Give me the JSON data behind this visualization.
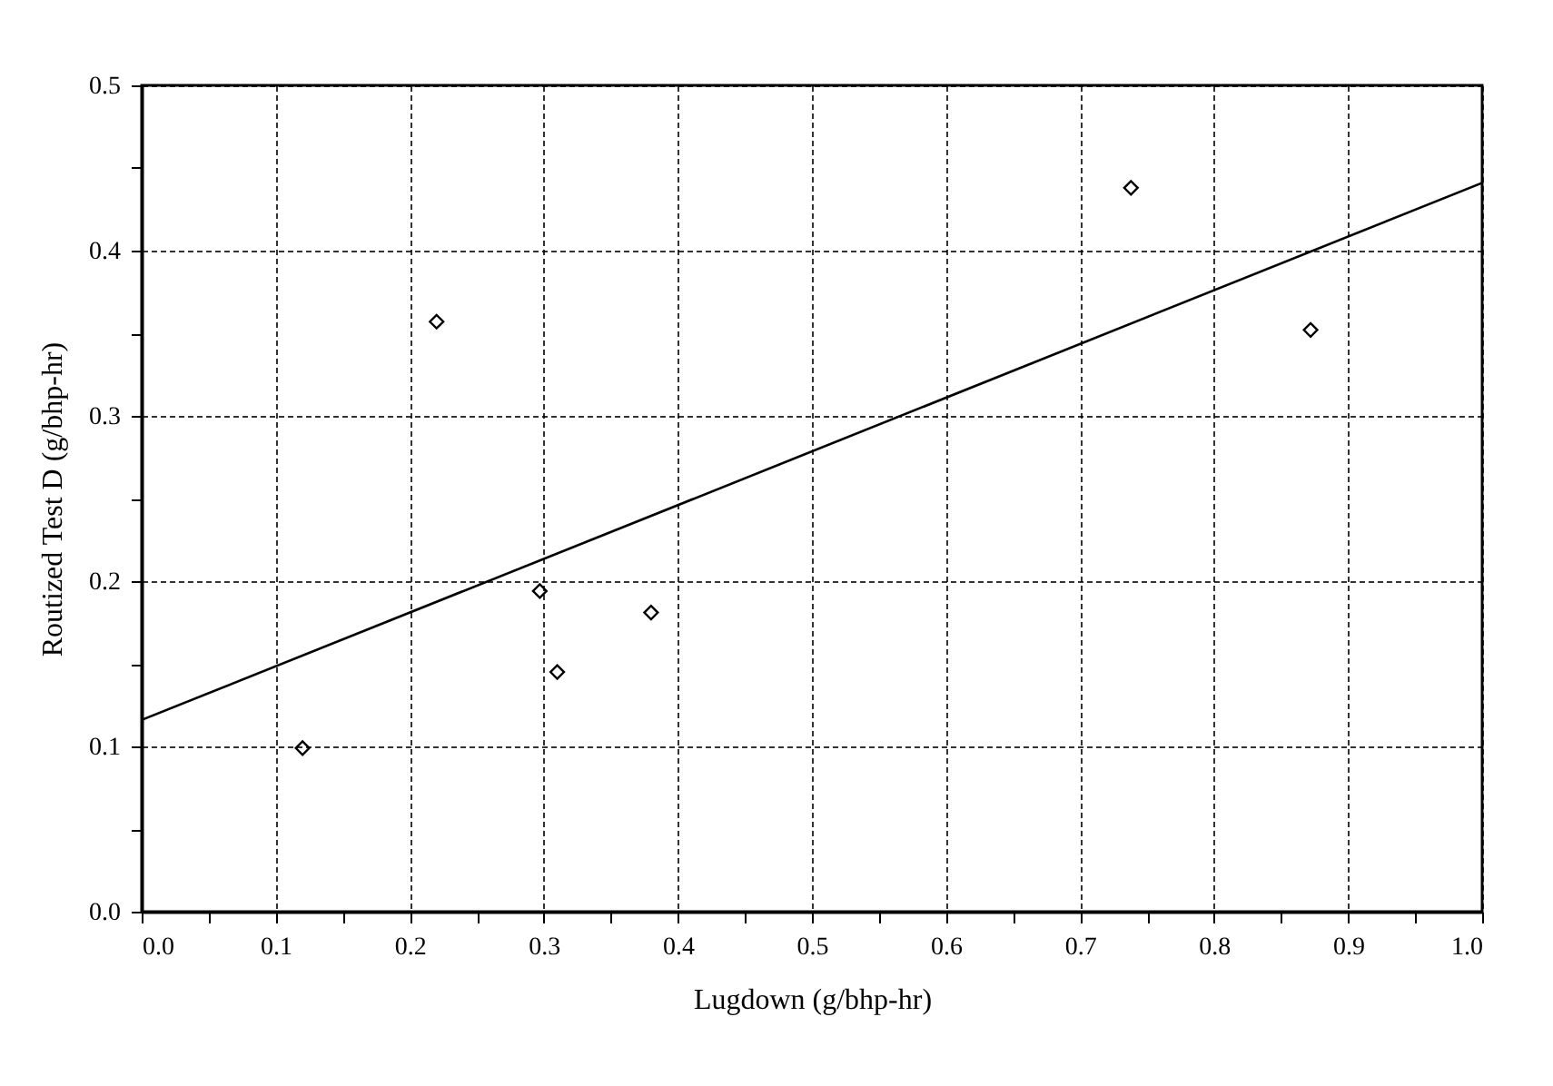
{
  "chart_data": {
    "type": "scatter",
    "xlabel": "Lugdown (g/bhp-hr)",
    "ylabel": "Routized Test D (g/bhp-hr)",
    "xlim": [
      0,
      1
    ],
    "ylim": [
      0,
      0.5
    ],
    "xticks": [
      {
        "value": 0,
        "label": "0.0"
      },
      {
        "value": 0.05,
        "label": null
      },
      0.1,
      {
        "value": 0.15,
        "label": null
      },
      0.2,
      {
        "value": 0.25,
        "label": null
      },
      0.3,
      {
        "value": 0.35,
        "label": null
      },
      0.4,
      {
        "value": 0.45,
        "label": null
      },
      0.5,
      {
        "value": 0.55,
        "label": null
      },
      0.6,
      {
        "value": 0.65,
        "label": null
      },
      0.7,
      {
        "value": 0.75,
        "label": null
      },
      0.8,
      {
        "value": 0.85,
        "label": null
      },
      0.9,
      {
        "value": 0.95,
        "label": null
      },
      {
        "value": 1,
        "label": "1.0"
      }
    ],
    "yticks": [
      {
        "value": 0,
        "label": "0.0"
      },
      {
        "value": 0.05,
        "label": null
      },
      0.1,
      {
        "value": 0.15,
        "label": null
      },
      0.2,
      {
        "value": 0.25,
        "label": null
      },
      0.3,
      {
        "value": 0.35,
        "label": null
      },
      0.4,
      {
        "value": 0.45,
        "label": null
      },
      0.5
    ],
    "grid": true,
    "series": [
      {
        "marker": "diamond",
        "color": "#000000",
        "x": [
          0.12,
          0.22,
          0.297,
          0.31,
          0.38,
          0.738,
          0.872
        ],
        "values": [
          0.099,
          0.357,
          0.194,
          0.145,
          0.181,
          0.438,
          0.352
        ]
      },
      {
        "type": "line",
        "color": "#000000",
        "x": [
          0,
          1
        ],
        "values": [
          0.116,
          0.441
        ]
      }
    ]
  }
}
